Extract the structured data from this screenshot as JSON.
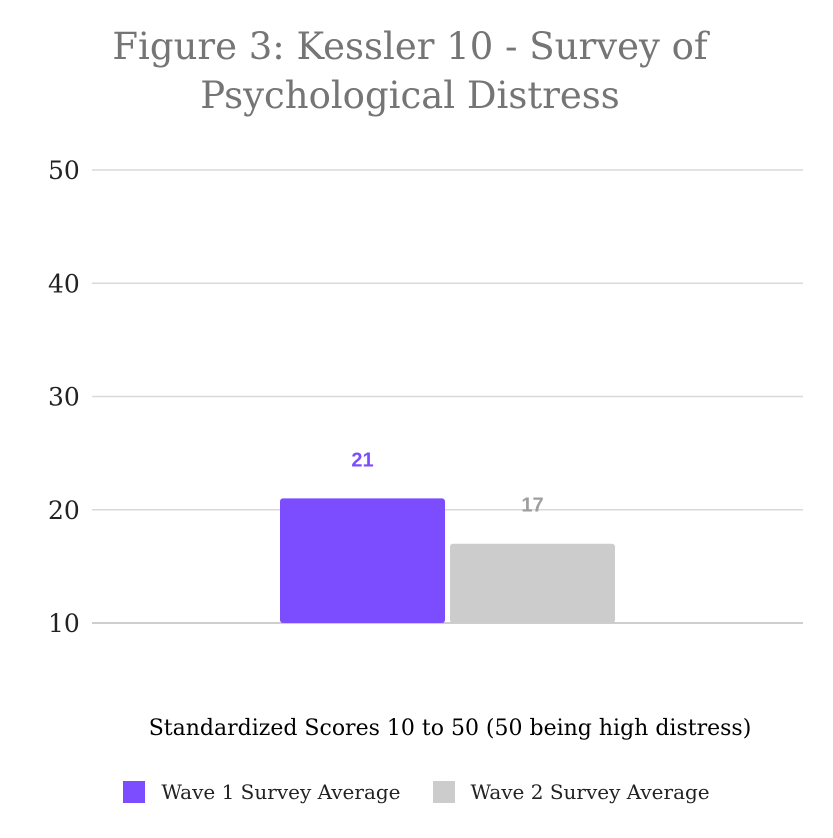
{
  "chart_data": {
    "type": "bar",
    "title": "Figure 3: Kessler 10 - Survey of Psychological Distress",
    "xlabel": "Standardized Scores 10 to 50 (50 being high distress)",
    "ylabel": "",
    "categories": [
      ""
    ],
    "series": [
      {
        "name": "Wave 1 Survey Average",
        "values": [
          21
        ],
        "color": "#7c4dff",
        "label_color": "#7c4dff"
      },
      {
        "name": "Wave 2 Survey Average",
        "values": [
          17
        ],
        "color": "#cccccc",
        "label_color": "#9e9e9e"
      }
    ],
    "ylim": [
      10,
      50
    ],
    "yticks": [
      "10",
      "20",
      "30",
      "40",
      "50"
    ],
    "grid": true,
    "legend": "bottom"
  }
}
